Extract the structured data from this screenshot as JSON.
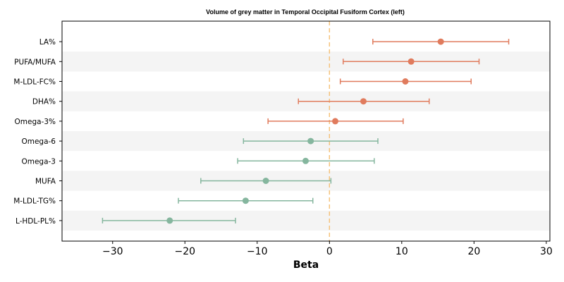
{
  "chart_data": {
    "type": "scatter",
    "title": "Volume of grey matter in Temporal Occipital Fusiform Cortex (left)",
    "xlabel": "Beta",
    "ylabel": "",
    "xlim": [
      -37,
      30.5
    ],
    "xticks": [
      -30,
      -20,
      -10,
      0,
      10,
      20,
      30
    ],
    "xtick_labels": [
      "−30",
      "−20",
      "−10",
      "0",
      "10",
      "20",
      "30"
    ],
    "reference_line": 0,
    "grid": false,
    "colors": {
      "positive": "#e07b5d",
      "negative": "#85b69e",
      "reference": "#f5c27a",
      "band": "#f4f4f4"
    },
    "points": [
      {
        "label": "LA%",
        "beta": 15.4,
        "lower": 6.0,
        "upper": 24.8
      },
      {
        "label": "PUFA/MUFA",
        "beta": 11.3,
        "lower": 1.9,
        "upper": 20.7
      },
      {
        "label": "M-LDL-FC%",
        "beta": 10.5,
        "lower": 1.5,
        "upper": 19.6
      },
      {
        "label": "DHA%",
        "beta": 4.7,
        "lower": -4.3,
        "upper": 13.8
      },
      {
        "label": "Omega-3%",
        "beta": 0.8,
        "lower": -8.5,
        "upper": 10.2
      },
      {
        "label": "Omega-6",
        "beta": -2.6,
        "lower": -11.9,
        "upper": 6.7
      },
      {
        "label": "Omega-3",
        "beta": -3.3,
        "lower": -12.7,
        "upper": 6.2
      },
      {
        "label": "MUFA",
        "beta": -8.8,
        "lower": -17.8,
        "upper": 0.2
      },
      {
        "label": "M-LDL-TG%",
        "beta": -11.6,
        "lower": -20.9,
        "upper": -2.3
      },
      {
        "label": "L-HDL-PL%",
        "beta": -22.1,
        "lower": -31.4,
        "upper": -13.0
      }
    ]
  }
}
